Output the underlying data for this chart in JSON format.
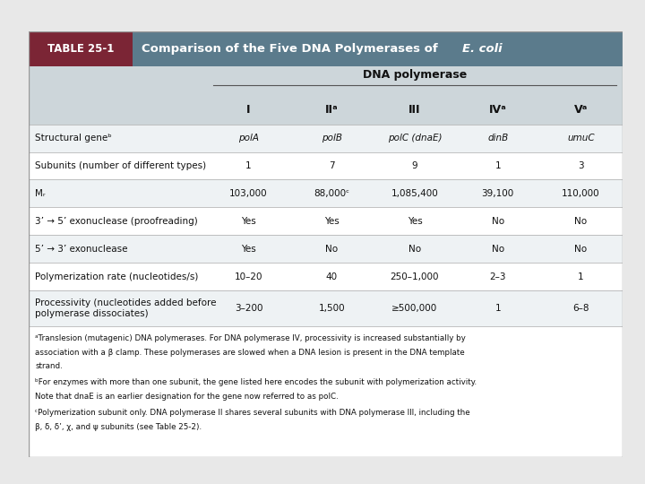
{
  "title_left": "TABLE 25-1",
  "title_right_normal": "Comparison of the Five DNA Polymerases of ",
  "title_right_italic": "E. coli",
  "header_group": "DNA polymerase",
  "col_headers": [
    "I",
    "IIᵃ",
    "III",
    "IVᵃ",
    "Vᵃ"
  ],
  "row_labels": [
    "Structural geneᵇ",
    "Subunits (number of different types)",
    "Mᵣ",
    "3’ → 5’ exonuclease (proofreading)",
    "5’ → 3’ exonuclease",
    "Polymerization rate (nucleotides/s)",
    "Processivity (nucleotides added before\npolymerase dissociates)"
  ],
  "data": [
    [
      "polA",
      "polB",
      "polC (dnaE)",
      "dinB",
      "umuC"
    ],
    [
      "1",
      "7",
      "9",
      "1",
      "3"
    ],
    [
      "103,000",
      "88,000ᶜ",
      "1,085,400",
      "39,100",
      "110,000"
    ],
    [
      "Yes",
      "Yes",
      "Yes",
      "No",
      "No"
    ],
    [
      "Yes",
      "No",
      "No",
      "No",
      "No"
    ],
    [
      "10–20",
      "40",
      "250–1,000",
      "2–3",
      "1"
    ],
    [
      "3–200",
      "1,500",
      "≥500,000",
      "1",
      "6–8"
    ]
  ],
  "data_italic": [
    true,
    false,
    false,
    false,
    false,
    false,
    false
  ],
  "footnotes": [
    "ᵃTranslesion (mutagenic) DNA polymerases. For DNA polymerase IV, processivity is increased substantially by association with a β clamp. These polymerases are slowed when a DNA lesion is present in the DNA template strand.",
    "ᵇFor enzymes with more than one subunit, the gene listed here encodes the subunit with polymerization activity. Note that dnaE is an earlier designation for the gene now referred to as polC.",
    "ᶜPolymerization subunit only. DNA polymerase II shares several subunits with DNA polymerase III, including the β, δ, δ’, χ, and ψ subunits (see Table 25-2)."
  ],
  "title_box_bg": "#7b2535",
  "header_bg": "#5b7b8c",
  "subheader_bg": "#cdd6da",
  "row_bg_even": "#eef2f4",
  "row_bg_odd": "#ffffff",
  "footnote_bg": "#ffffff",
  "outer_border": "#999999",
  "title_color": "#ffffff",
  "text_color": "#111111",
  "line_color": "#aaaaaa",
  "fig_bg": "#e8e8e8"
}
